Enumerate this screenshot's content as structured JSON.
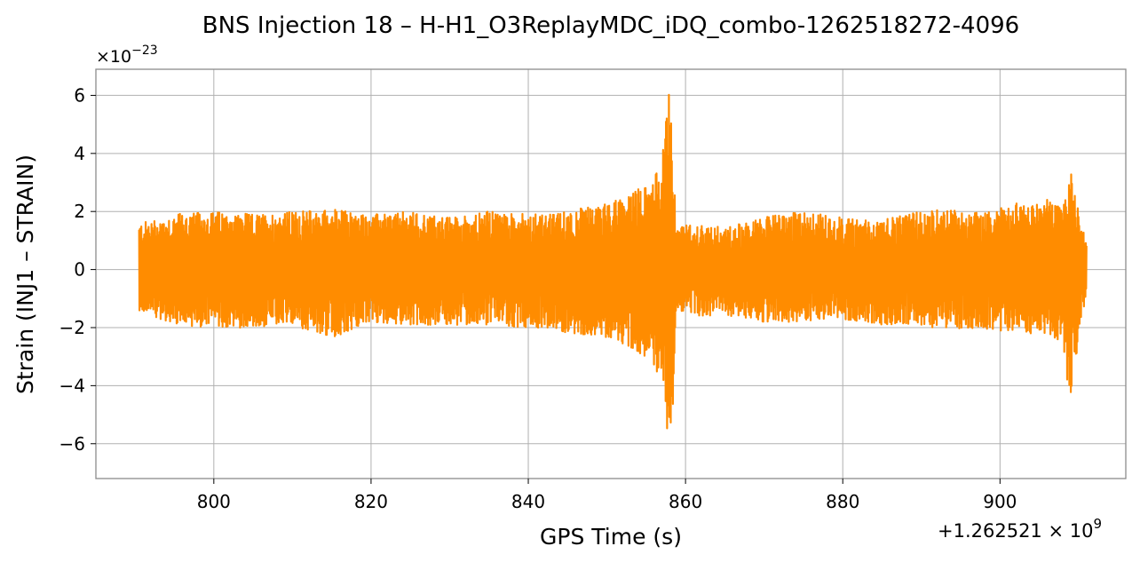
{
  "chart_data": {
    "type": "line",
    "title": "BNS Injection 18 – H-H1_O3ReplayMDC_iDQ_combo-1262518272-4096",
    "xlabel": "GPS Time (s)",
    "ylabel": "Strain (INJ1 – STRAIN)",
    "x_offset_label": "+1.262521 × 10",
    "x_offset_exp": "9",
    "y_multiplier_label": "×10",
    "y_multiplier_exp": "−23",
    "xlim": [
      785,
      916
    ],
    "ylim": [
      -7.2,
      6.9
    ],
    "x_ticks": [
      800,
      820,
      840,
      860,
      880,
      900
    ],
    "x_tick_labels": [
      "800",
      "820",
      "840",
      "860",
      "880",
      "900"
    ],
    "y_ticks": [
      -6,
      -4,
      -2,
      0,
      2,
      4,
      6
    ],
    "y_tick_labels": [
      "−6",
      "−4",
      "−2",
      "0",
      "2",
      "4",
      "6"
    ],
    "grid": true,
    "series": [
      {
        "color": "#ff8c00",
        "x_range": [
          790.5,
          911
        ],
        "envelope_x": [
          790.5,
          795,
          800,
          805,
          810,
          815,
          820,
          825,
          830,
          835,
          840,
          843,
          846,
          849,
          851,
          853,
          855,
          856,
          857,
          858,
          858.5,
          858.7,
          859,
          862,
          866,
          870,
          875,
          880,
          885,
          890,
          893,
          896,
          899,
          902,
          904,
          906,
          908,
          909,
          910,
          911
        ],
        "envelope_upper": [
          1.6,
          1.9,
          2.0,
          1.9,
          2.0,
          2.1,
          1.9,
          2.0,
          1.8,
          2.0,
          1.9,
          1.9,
          2.1,
          2.2,
          2.4,
          2.6,
          3.0,
          3.2,
          3.8,
          6.3,
          4.0,
          1.8,
          1.6,
          1.5,
          1.5,
          1.8,
          2.0,
          1.8,
          1.7,
          2.0,
          2.1,
          2.0,
          2.0,
          2.3,
          2.2,
          2.4,
          2.2,
          3.5,
          2.0,
          1.0
        ],
        "envelope_lower": [
          -1.4,
          -1.9,
          -2.0,
          -2.0,
          -1.9,
          -2.4,
          -1.8,
          -1.9,
          -1.9,
          -1.9,
          -2.0,
          -2.1,
          -2.2,
          -2.3,
          -2.4,
          -2.7,
          -3.0,
          -3.3,
          -4.2,
          -6.6,
          -4.5,
          -1.7,
          -1.4,
          -1.6,
          -1.6,
          -1.8,
          -1.8,
          -1.7,
          -1.9,
          -2.0,
          -2.1,
          -2.0,
          -2.1,
          -2.1,
          -2.2,
          -2.2,
          -2.5,
          -4.9,
          -2.2,
          -0.9
        ]
      }
    ]
  }
}
